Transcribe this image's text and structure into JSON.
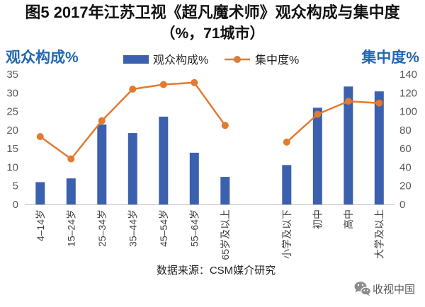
{
  "chart_data": {
    "type": "bar",
    "title": "图5 2017年江苏卫视《超凡魔术师》观众构成与集中度",
    "subtitle": "（%，71城市）",
    "categories": [
      "4–14岁",
      "15–24岁",
      "25–34岁",
      "35–44岁",
      "45–54岁",
      "55–64岁",
      "65岁及以上",
      null,
      "小学及以下",
      "初中",
      "高中",
      "大学及以上"
    ],
    "series": [
      {
        "name": "观众构成%",
        "type": "bar",
        "axis": "left",
        "color": "#3B60AE",
        "values": [
          6.0,
          7.0,
          21.5,
          19.2,
          23.6,
          13.9,
          7.4,
          null,
          10.6,
          26.0,
          31.7,
          30.4
        ]
      },
      {
        "name": "集中度%",
        "type": "line",
        "axis": "right",
        "marker": "circle",
        "color": "#E27A30",
        "values": [
          73,
          49,
          90,
          124,
          129,
          131,
          85,
          null,
          67,
          97,
          111,
          109
        ]
      }
    ],
    "ylabel": "观众构成%",
    "y2label": "集中度%",
    "ylim": [
      0,
      35
    ],
    "y2lim": [
      0,
      140
    ],
    "yticks": [
      0,
      5,
      10,
      15,
      20,
      25,
      30,
      35
    ],
    "y2ticks": [
      0,
      20,
      40,
      60,
      80,
      100,
      120,
      140
    ],
    "grid": false,
    "legend": "top-center",
    "axis_title_color": "#2467B0",
    "baseline_color": "#BFBFBF"
  },
  "source": "数据来源：CSM媒介研究",
  "watermark": "收视中国",
  "watermark_icon": "wechat-icon"
}
